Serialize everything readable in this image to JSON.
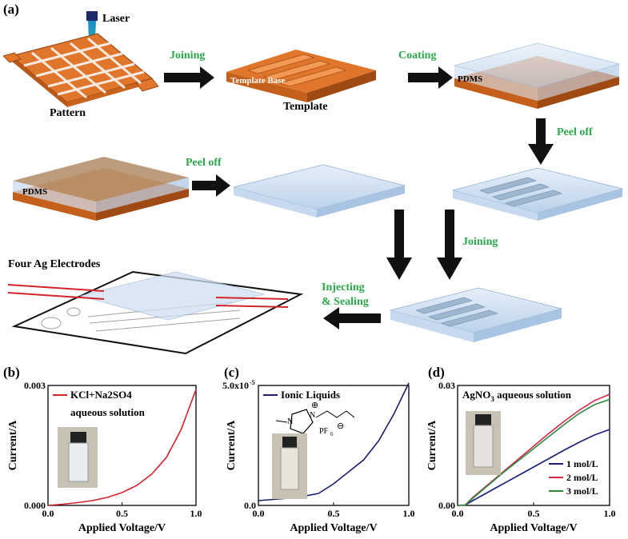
{
  "figure": {
    "panel_a": {
      "label": "(a)",
      "laser_label": "Laser",
      "pattern_label": "Pattern",
      "template_label": "Template",
      "template_base_label": "Template Base",
      "pdms_label_top": "PDMS",
      "pdms_label_left": "PDMS",
      "four_electrodes_label": "Four Ag Electrodes",
      "steps": {
        "joining_1": "Joining",
        "coating": "Coating",
        "peel_off_1": "Peel off",
        "peel_off_2": "Peel off",
        "joining_2": "Joining",
        "injecting_line1": "Injecting",
        "injecting_line2": "& Sealing"
      },
      "colors": {
        "copper": "#e0762b",
        "copper_dark": "#b8581a",
        "pdms": "#cfe0f2",
        "green": "#2aa84a",
        "laser": "#1d2a6b"
      }
    },
    "panel_b": {
      "label": "(b)"
    },
    "panel_c": {
      "label": "(c)"
    },
    "panel_d": {
      "label": "(d)"
    }
  },
  "chart_data": [
    {
      "type": "line",
      "xlabel": "Applied Voltage/V",
      "ylabel": "Current/A",
      "xlim": [
        0,
        1.0
      ],
      "ylim": [
        0,
        0.003
      ],
      "xticks": [
        "0.0",
        "0.5",
        "1.0"
      ],
      "yticks": [
        "0.000",
        "0.003"
      ],
      "legend": [
        "KCl+Na2SO4",
        "aqueous solution"
      ],
      "series": [
        {
          "name": "KCl+Na2SO4 aqueous solution",
          "color": "#d3242a",
          "x": [
            0,
            0.1,
            0.2,
            0.3,
            0.4,
            0.5,
            0.6,
            0.7,
            0.8,
            0.9,
            1.0
          ],
          "y": [
            0,
            3e-05,
            7e-05,
            0.00012,
            0.0002,
            0.00032,
            0.0005,
            0.00078,
            0.0012,
            0.0019,
            0.0029
          ]
        }
      ]
    },
    {
      "type": "line",
      "xlabel": "Applied Voltage/V",
      "ylabel": "Current/A",
      "xlim": [
        0,
        1.0
      ],
      "ylim": [
        0,
        5e-05
      ],
      "xticks": [
        "0.0",
        "0.5",
        "1.0"
      ],
      "yticks": [
        "0.0",
        "5.0x10"
      ],
      "ytick_top_exp": "-5",
      "legend": [
        "Ionic Liquids"
      ],
      "series": [
        {
          "name": "Ionic Liquids",
          "color": "#1a1f6e",
          "x": [
            0,
            0.1,
            0.2,
            0.3,
            0.4,
            0.5,
            0.6,
            0.7,
            0.8,
            0.9,
            1.0
          ],
          "y": [
            2e-06,
            2.5e-06,
            3e-06,
            3.8e-06,
            5e-06,
            9e-06,
            1.4e-05,
            1.9e-05,
            2.7e-05,
            3.8e-05,
            5.1e-05
          ]
        }
      ],
      "annotations": {
        "ion_charge": "⊕",
        "methyl": "N",
        "n_plus": "N",
        "anion": "PF",
        "anion_sub": "6",
        "anion_charge": "⊖"
      }
    },
    {
      "type": "line",
      "xlabel": "Applied Voltage/V",
      "ylabel": "Current/A",
      "xlim": [
        0,
        1.0
      ],
      "ylim": [
        0,
        0.03
      ],
      "xticks": [
        "0.0",
        "0.5",
        "1.0"
      ],
      "yticks": [
        "0.00",
        "0.03"
      ],
      "title_parts": [
        "AgNO",
        "3",
        " aqueous solution"
      ],
      "series": [
        {
          "name": "1 mol/L",
          "color": "#1a1f7a",
          "x": [
            0,
            0.05,
            0.1,
            0.2,
            0.3,
            0.4,
            0.5,
            0.6,
            0.7,
            0.8,
            0.9,
            1.0
          ],
          "y": [
            0,
            0.0001,
            0.0012,
            0.0033,
            0.0054,
            0.0075,
            0.0096,
            0.0117,
            0.0138,
            0.0158,
            0.0176,
            0.019
          ]
        },
        {
          "name": "2 mol/L",
          "color": "#d3284a",
          "x": [
            0,
            0.05,
            0.1,
            0.2,
            0.3,
            0.4,
            0.5,
            0.6,
            0.7,
            0.8,
            0.9,
            1.0
          ],
          "y": [
            0,
            0.0001,
            0.002,
            0.0052,
            0.0084,
            0.0116,
            0.0148,
            0.018,
            0.021,
            0.0238,
            0.0262,
            0.0278
          ]
        },
        {
          "name": "3 mol/L",
          "color": "#2e8b3d",
          "x": [
            0,
            0.05,
            0.1,
            0.2,
            0.3,
            0.4,
            0.5,
            0.6,
            0.7,
            0.8,
            0.9,
            1.0
          ],
          "y": [
            0,
            0.0001,
            0.0018,
            0.005,
            0.0082,
            0.0112,
            0.0142,
            0.0172,
            0.0202,
            0.023,
            0.0252,
            0.0265
          ]
        }
      ]
    }
  ]
}
